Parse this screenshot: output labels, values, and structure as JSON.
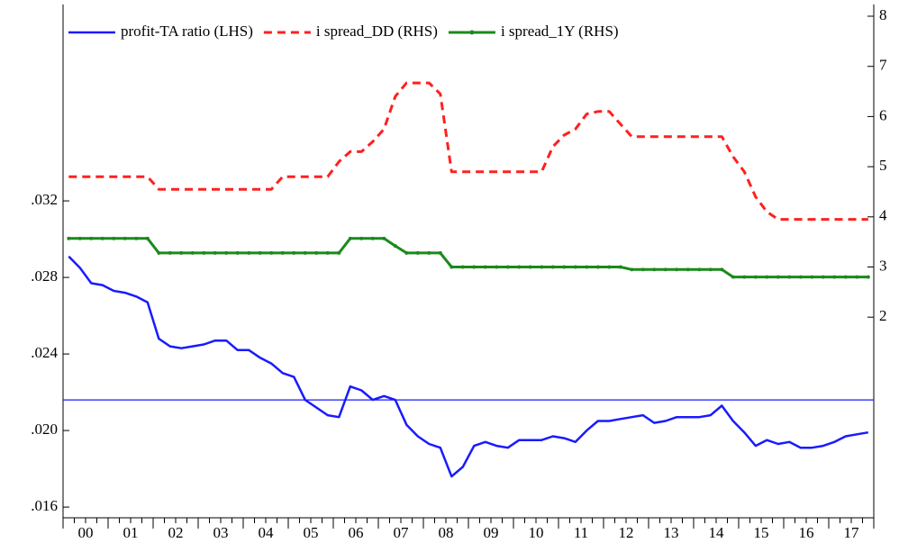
{
  "chart_data": {
    "type": "line",
    "categories": [
      "00",
      null,
      null,
      null,
      "01",
      null,
      null,
      null,
      "02",
      null,
      null,
      null,
      "03",
      null,
      null,
      null,
      "04",
      null,
      null,
      null,
      "05",
      null,
      null,
      null,
      "06",
      null,
      null,
      null,
      "07",
      null,
      null,
      null,
      "08",
      null,
      null,
      null,
      "09",
      null,
      null,
      null,
      "10",
      null,
      null,
      null,
      "11",
      null,
      null,
      null,
      "12",
      null,
      null,
      null,
      "13",
      null,
      null,
      null,
      "14",
      null,
      null,
      null,
      "15",
      null,
      null,
      null,
      "16",
      null,
      null,
      null,
      "17",
      null,
      null,
      null
    ],
    "series": [
      {
        "name": "profit-TA ratio (LHS)",
        "color": "#1a1aff",
        "style": "solid",
        "axis": "y",
        "values": [
          0.0291,
          0.0285,
          0.0277,
          0.0276,
          0.0273,
          0.0272,
          0.027,
          0.0267,
          0.0248,
          0.0244,
          0.0243,
          0.0244,
          0.0245,
          0.0247,
          0.0247,
          0.0242,
          0.0242,
          0.0238,
          0.0235,
          0.023,
          0.0228,
          0.0216,
          0.0212,
          0.0208,
          0.0207,
          0.0223,
          0.0221,
          0.0216,
          0.0218,
          0.0216,
          0.0203,
          0.0197,
          0.0193,
          0.0191,
          0.0176,
          0.0181,
          0.0192,
          0.0194,
          0.0192,
          0.0191,
          0.0195,
          0.0195,
          0.0195,
          0.0197,
          0.0196,
          0.0194,
          0.02,
          0.0205,
          0.0205,
          0.0206,
          0.0207,
          0.0208,
          0.0204,
          0.0205,
          0.0207,
          0.0207,
          0.0207,
          0.0208,
          0.0213,
          0.0205,
          0.0199,
          0.0192,
          0.0195,
          0.0193,
          0.0194,
          0.0191,
          0.0191,
          0.0192,
          0.0194,
          0.0197,
          0.0198,
          0.0199
        ]
      },
      {
        "name": "i spread_DD (RHS)",
        "color": "#ff2020",
        "style": "dashed",
        "axis": "y2",
        "values": [
          4.8,
          4.8,
          4.8,
          4.8,
          4.8,
          4.8,
          4.8,
          4.8,
          4.55,
          4.55,
          4.55,
          4.55,
          4.55,
          4.55,
          4.55,
          4.55,
          4.55,
          4.55,
          4.55,
          4.8,
          4.8,
          4.8,
          4.8,
          4.8,
          5.1,
          5.3,
          5.3,
          5.5,
          5.75,
          6.4,
          6.67,
          6.67,
          6.67,
          6.45,
          4.9,
          4.9,
          4.9,
          4.9,
          4.9,
          4.9,
          4.9,
          4.9,
          4.9,
          5.4,
          5.63,
          5.75,
          6.05,
          6.1,
          6.1,
          5.85,
          5.6,
          5.6,
          5.6,
          5.6,
          5.6,
          5.6,
          5.6,
          5.6,
          5.6,
          5.2,
          4.9,
          4.4,
          4.1,
          3.95,
          3.95,
          3.95,
          3.95,
          3.95,
          3.95,
          3.95,
          3.95,
          3.95
        ]
      },
      {
        "name": "i spread_1Y (RHS)",
        "color": "#1a8a1a",
        "style": "dotted-marker",
        "axis": "y2",
        "values": [
          3.57,
          3.57,
          3.57,
          3.57,
          3.57,
          3.57,
          3.57,
          3.57,
          3.28,
          3.28,
          3.28,
          3.28,
          3.28,
          3.28,
          3.28,
          3.28,
          3.28,
          3.28,
          3.28,
          3.28,
          3.28,
          3.28,
          3.28,
          3.28,
          3.28,
          3.57,
          3.57,
          3.57,
          3.57,
          3.42,
          3.28,
          3.28,
          3.28,
          3.28,
          3.0,
          3.0,
          3.0,
          3.0,
          3.0,
          3.0,
          3.0,
          3.0,
          3.0,
          3.0,
          3.0,
          3.0,
          3.0,
          3.0,
          3.0,
          3.0,
          2.95,
          2.95,
          2.95,
          2.95,
          2.95,
          2.95,
          2.95,
          2.95,
          2.95,
          2.8,
          2.8,
          2.8,
          2.8,
          2.8,
          2.8,
          2.8,
          2.8,
          2.8,
          2.8,
          2.8,
          2.8,
          2.8
        ]
      }
    ],
    "ylim": [
      0.01544,
      0.04165
    ],
    "yticks": [
      {
        "value": 0.016,
        "label": ".016"
      },
      {
        "value": 0.02,
        "label": ".020"
      },
      {
        "value": 0.024,
        "label": ".024"
      },
      {
        "value": 0.028,
        "label": ".028"
      },
      {
        "value": 0.032,
        "label": ".032"
      }
    ],
    "y2lim": [
      -2,
      8
    ],
    "y2ticks": [
      2,
      3,
      4,
      5,
      6,
      7,
      8
    ],
    "hline": 0.0216,
    "hline_color": "#1a1aff",
    "legend": "top"
  }
}
